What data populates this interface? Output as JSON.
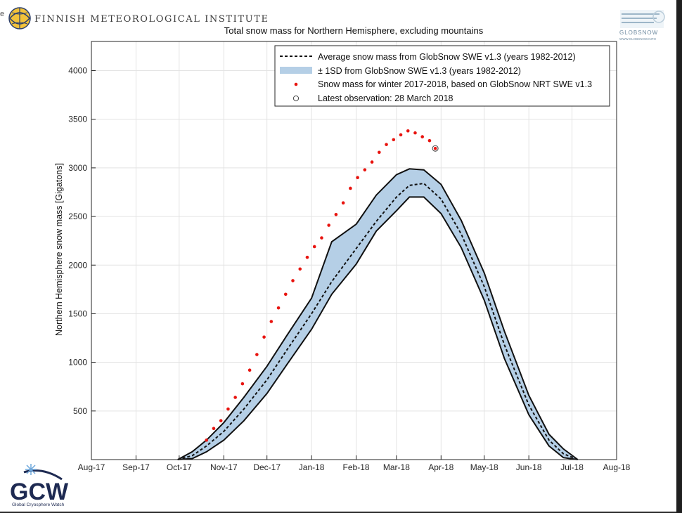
{
  "header": {
    "organization": "FINNISH METEOROLOGICAL INSTITUTE",
    "left_edge_text": "e"
  },
  "logos": {
    "fmi": {
      "icon": "fmi-globe-logo"
    },
    "globsnow": {
      "icon": "globsnow-logo",
      "text": "GLOBSNOW",
      "url_text": "WWW.GLOBSNOW.INFO"
    },
    "gcw": {
      "icon": "gcw-logo",
      "text": "GCW",
      "subtitle": "Global Cryosphere Watch"
    }
  },
  "colors": {
    "band_fill": "#b5cfe6",
    "band_edge": "#111111",
    "mean_line": "#111111",
    "obs_points": "#e8140f",
    "grid": "#e3e3e3",
    "axes": "#262626"
  },
  "chart_data": {
    "type": "line",
    "title": "Total snow mass for Northern Hemisphere, excluding mountains",
    "xlabel": "",
    "ylabel": "Northern Hemisphere snow mass [Gigatons]",
    "x_tick_labels": [
      "Aug-17",
      "Sep-17",
      "Oct-17",
      "Nov-17",
      "Dec-17",
      "Jan-18",
      "Feb-18",
      "Mar-18",
      "Apr-18",
      "May-18",
      "Jun-18",
      "Jul-18",
      "Aug-18"
    ],
    "x_ticks_dates": [
      "2017-08-01",
      "2017-09-01",
      "2017-10-01",
      "2017-11-01",
      "2017-12-01",
      "2018-01-01",
      "2018-02-01",
      "2018-03-01",
      "2018-04-01",
      "2018-05-01",
      "2018-06-01",
      "2018-07-01",
      "2018-08-01"
    ],
    "xlim": [
      "2017-08-01",
      "2018-08-01"
    ],
    "y_ticks": [
      500,
      1000,
      1500,
      2000,
      2500,
      3000,
      3500,
      4000
    ],
    "ylim": [
      0,
      4300
    ],
    "grid": true,
    "legend_position": "top-right",
    "legend": [
      {
        "label": "Average snow mass from GlobSnow SWE v1.3 (years 1982-2012)",
        "marker": "dashed-line"
      },
      {
        "label": "± 1SD from GlobSnow SWE v1.3 (years 1982-2012)",
        "marker": "filled-band"
      },
      {
        "label": "Snow mass for winter 2017-2018, based on GlobSnow NRT SWE v1.3",
        "marker": "red-dot"
      },
      {
        "label": "Latest observation: 28 March 2018",
        "marker": "circle"
      }
    ],
    "series": [
      {
        "name": "Average snow mass from GlobSnow SWE v1.3 (years 1982-2012)",
        "style": "dashed",
        "x": [
          "2017-09-30",
          "2017-10-10",
          "2017-10-20",
          "2017-11-01",
          "2017-11-15",
          "2017-12-01",
          "2017-12-15",
          "2018-01-01",
          "2018-01-15",
          "2018-02-01",
          "2018-02-15",
          "2018-03-01",
          "2018-03-10",
          "2018-03-20",
          "2018-04-01",
          "2018-04-15",
          "2018-05-01",
          "2018-05-15",
          "2018-06-01",
          "2018-06-15",
          "2018-06-25",
          "2018-07-05"
        ],
        "y": [
          0,
          40,
          140,
          290,
          520,
          820,
          1130,
          1500,
          1830,
          2170,
          2450,
          2700,
          2820,
          2840,
          2680,
          2320,
          1780,
          1180,
          560,
          200,
          60,
          0
        ]
      },
      {
        "name": "± 1SD upper",
        "style": "band-upper",
        "x": [
          "2017-09-30",
          "2017-10-10",
          "2017-10-20",
          "2017-11-01",
          "2017-11-15",
          "2017-12-01",
          "2017-12-15",
          "2018-01-01",
          "2018-01-15",
          "2018-02-01",
          "2018-02-15",
          "2018-03-01",
          "2018-03-10",
          "2018-03-20",
          "2018-04-01",
          "2018-04-15",
          "2018-05-01",
          "2018-05-15",
          "2018-06-01",
          "2018-06-15",
          "2018-06-25",
          "2018-07-05"
        ],
        "y": [
          0,
          80,
          200,
          380,
          640,
          960,
          1280,
          1660,
          2240,
          2420,
          2720,
          2930,
          2990,
          2980,
          2830,
          2460,
          1920,
          1320,
          660,
          260,
          110,
          0
        ]
      },
      {
        "name": "± 1SD lower",
        "style": "band-lower",
        "x": [
          "2017-09-30",
          "2017-10-10",
          "2017-10-20",
          "2017-11-01",
          "2017-11-15",
          "2017-12-01",
          "2017-12-15",
          "2018-01-01",
          "2018-01-15",
          "2018-02-01",
          "2018-02-15",
          "2018-03-01",
          "2018-03-10",
          "2018-03-20",
          "2018-04-01",
          "2018-04-15",
          "2018-05-01",
          "2018-05-15",
          "2018-06-01",
          "2018-06-15",
          "2018-06-25",
          "2018-07-05"
        ],
        "y": [
          0,
          10,
          80,
          200,
          400,
          680,
          980,
          1340,
          1700,
          2010,
          2350,
          2560,
          2700,
          2700,
          2530,
          2180,
          1640,
          1040,
          460,
          140,
          20,
          0
        ]
      },
      {
        "name": "Snow mass for winter 2017-2018, based on GlobSnow NRT SWE v1.3",
        "style": "points",
        "x": [
          "2017-10-20",
          "2017-10-25",
          "2017-10-30",
          "2017-11-04",
          "2017-11-09",
          "2017-11-14",
          "2017-11-19",
          "2017-11-24",
          "2017-11-29",
          "2017-12-04",
          "2017-12-09",
          "2017-12-14",
          "2017-12-19",
          "2017-12-24",
          "2017-12-29",
          "2018-01-03",
          "2018-01-08",
          "2018-01-13",
          "2018-01-18",
          "2018-01-23",
          "2018-01-28",
          "2018-02-02",
          "2018-02-07",
          "2018-02-12",
          "2018-02-17",
          "2018-02-22",
          "2018-02-27",
          "2018-03-04",
          "2018-03-09",
          "2018-03-14",
          "2018-03-19",
          "2018-03-24",
          "2018-03-28"
        ],
        "y": [
          200,
          320,
          400,
          520,
          640,
          780,
          920,
          1080,
          1260,
          1420,
          1560,
          1700,
          1840,
          1960,
          2080,
          2190,
          2280,
          2410,
          2520,
          2640,
          2790,
          2900,
          2980,
          3060,
          3160,
          3240,
          3290,
          3340,
          3380,
          3360,
          3320,
          3280,
          3200
        ]
      }
    ],
    "latest_observation": {
      "x": "2018-03-28",
      "y": 3200
    }
  }
}
